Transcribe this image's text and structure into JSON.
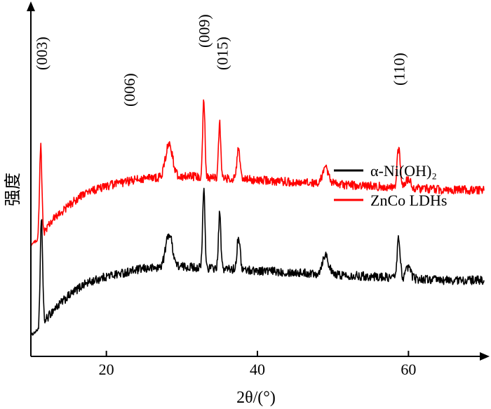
{
  "chart_data": {
    "type": "line",
    "title": "",
    "xlabel": "2θ/(°)",
    "ylabel": "强度",
    "xlim": [
      10,
      70
    ],
    "xticks": [
      20,
      40,
      60
    ],
    "xtick_labels": [
      "20",
      "40",
      "60"
    ],
    "y_axis_ticks": false,
    "grid": false,
    "legend_position": "right",
    "series": [
      {
        "name": "α-Ni(OH)₂",
        "color": "#000000",
        "offset": 0,
        "baseline": [
          [
            10,
            0.0
          ],
          [
            11,
            0.03
          ],
          [
            12,
            0.08
          ],
          [
            13,
            0.13
          ],
          [
            15,
            0.2
          ],
          [
            17,
            0.26
          ],
          [
            20,
            0.3
          ],
          [
            25,
            0.34
          ],
          [
            30,
            0.35
          ],
          [
            35,
            0.34
          ],
          [
            40,
            0.33
          ],
          [
            45,
            0.32
          ],
          [
            50,
            0.31
          ],
          [
            55,
            0.3
          ],
          [
            60,
            0.29
          ],
          [
            65,
            0.28
          ],
          [
            70,
            0.28
          ]
        ],
        "peaks": [
          [
            11.4,
            0.55,
            0.15
          ],
          [
            28.3,
            0.17,
            0.45
          ],
          [
            32.9,
            0.4,
            0.15
          ],
          [
            35.0,
            0.28,
            0.15
          ],
          [
            37.5,
            0.17,
            0.2
          ],
          [
            49.0,
            0.1,
            0.4
          ],
          [
            58.7,
            0.2,
            0.2
          ],
          [
            60.0,
            0.06,
            0.3
          ]
        ]
      },
      {
        "name": "ZnCo LDHs",
        "color": "#ff0000",
        "offset": 0.46,
        "baseline": [
          [
            10,
            0.0
          ],
          [
            11,
            0.03
          ],
          [
            12,
            0.08
          ],
          [
            13,
            0.13
          ],
          [
            15,
            0.2
          ],
          [
            17,
            0.26
          ],
          [
            20,
            0.3
          ],
          [
            25,
            0.34
          ],
          [
            30,
            0.35
          ],
          [
            35,
            0.34
          ],
          [
            40,
            0.33
          ],
          [
            45,
            0.32
          ],
          [
            50,
            0.31
          ],
          [
            55,
            0.3
          ],
          [
            60,
            0.29
          ],
          [
            65,
            0.28
          ],
          [
            70,
            0.28
          ]
        ],
        "peaks": [
          [
            11.3,
            0.46,
            0.15
          ],
          [
            28.3,
            0.17,
            0.45
          ],
          [
            32.9,
            0.4,
            0.15
          ],
          [
            35.0,
            0.28,
            0.15
          ],
          [
            37.5,
            0.15,
            0.2
          ],
          [
            49.0,
            0.08,
            0.4
          ],
          [
            58.7,
            0.2,
            0.2
          ],
          [
            60.0,
            0.05,
            0.3
          ]
        ]
      }
    ],
    "annotations": [
      {
        "text": "(003)",
        "x": 11.4
      },
      {
        "text": "(006)",
        "x": 23.0
      },
      {
        "text": "(009)",
        "x": 32.9
      },
      {
        "text": "(015)",
        "x": 35.3
      },
      {
        "text": "(110)",
        "x": 58.7
      }
    ]
  },
  "legend": [
    {
      "label": "α-Ni(OH)₂",
      "color": "#000000"
    },
    {
      "label": "ZnCo LDHs",
      "color": "#ff0000"
    }
  ]
}
